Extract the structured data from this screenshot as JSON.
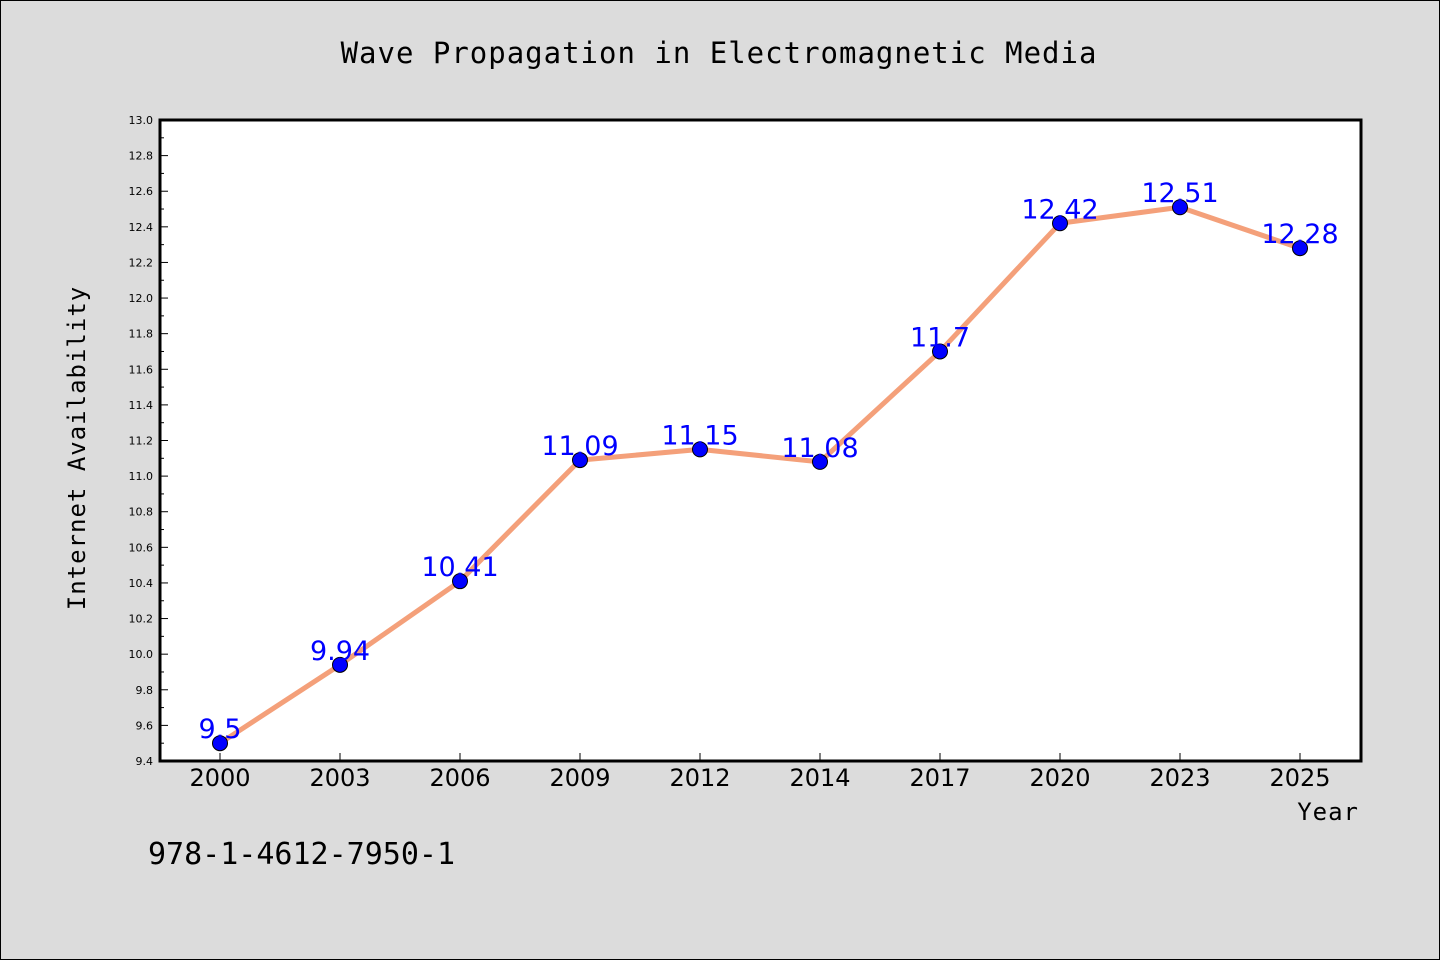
{
  "chart_data": {
    "type": "line",
    "title": "Wave Propagation in Electromagnetic Media",
    "xlabel": "Year",
    "ylabel": "Internet Availability",
    "categories": [
      "2000",
      "2003",
      "2006",
      "2009",
      "2012",
      "2014",
      "2017",
      "2020",
      "2023",
      "2025"
    ],
    "series": [
      {
        "values": [
          9.5,
          9.94,
          10.41,
          11.09,
          11.15,
          11.08,
          11.7,
          12.42,
          12.51,
          12.28
        ],
        "data_labels": [
          "9.5",
          "9.94",
          "10.41",
          "11.09",
          "11.15",
          "11.08",
          "11.7",
          "12.42",
          "12.51",
          "12.28"
        ],
        "line_color": "#f4a07a",
        "marker_color": "#0000ff"
      }
    ],
    "ylim": [
      9.4,
      13.0
    ],
    "yticks": [
      "9.4",
      "9.6",
      "9.8",
      "10.0",
      "10.2",
      "10.4",
      "10.6",
      "10.8",
      "11.0",
      "11.2",
      "11.4",
      "11.6",
      "11.8",
      "12.0",
      "12.2",
      "12.4",
      "12.6",
      "12.8",
      "13.0"
    ],
    "grid": false,
    "background": "#dcdcdc",
    "plot_background": "#ffffff"
  },
  "annotation": "978-1-4612-7950-1"
}
